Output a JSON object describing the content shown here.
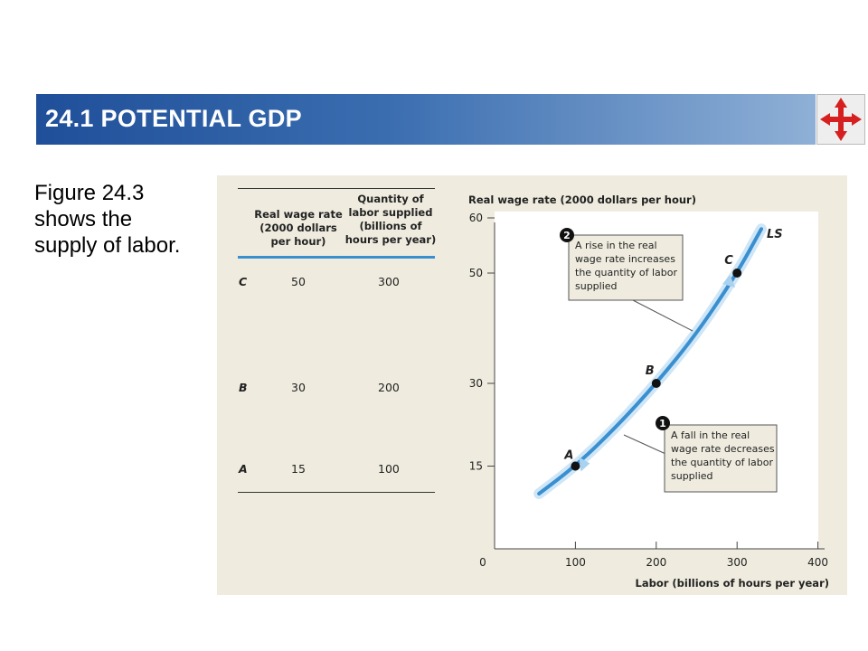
{
  "header": {
    "title": "24.1 POTENTIAL GDP"
  },
  "caption": "Figure 24.3 shows the supply of labor.",
  "colors": {
    "title_bar_start": "#1f4f99",
    "title_bar_end": "#8fb0d6",
    "curve": "#3a8fd0",
    "panel": "#efecdf",
    "arrow": "#d62020"
  },
  "icons": {
    "nav": "four-way-arrow-icon"
  },
  "table": {
    "headers": [
      "Real wage rate (2000 dollars per hour)",
      "Quantity of labor supplied (billions of hours per year)"
    ],
    "rows": [
      {
        "label": "C",
        "wage": "50",
        "quantity": "300"
      },
      {
        "label": "B",
        "wage": "30",
        "quantity": "200"
      },
      {
        "label": "A",
        "wage": "15",
        "quantity": "100"
      }
    ]
  },
  "chart_data": {
    "type": "line",
    "title": "",
    "ylabel": "Real wage rate (2000 dollars per hour)",
    "xlabel": "Labor (billions of hours per year)",
    "xlim": [
      0,
      400
    ],
    "ylim": [
      0,
      60
    ],
    "x_ticks": [
      "0",
      "100",
      "200",
      "300",
      "400"
    ],
    "y_ticks": [
      "15",
      "30",
      "50",
      "60"
    ],
    "series": [
      {
        "name": "LS",
        "x": [
          55,
          100,
          150,
          200,
          250,
          300,
          330
        ],
        "y": [
          10,
          15,
          22,
          30,
          39,
          50,
          58
        ]
      }
    ],
    "points": [
      {
        "label": "A",
        "x": 100,
        "y": 15
      },
      {
        "label": "B",
        "x": 200,
        "y": 30
      },
      {
        "label": "C",
        "x": 300,
        "y": 50
      }
    ],
    "annotations": [
      {
        "marker": "1",
        "text": "A fall in the real wage rate decreases the quantity of labor supplied"
      },
      {
        "marker": "2",
        "text": "A rise in the real wage rate increases the quantity of labor supplied"
      }
    ],
    "grid": false
  }
}
